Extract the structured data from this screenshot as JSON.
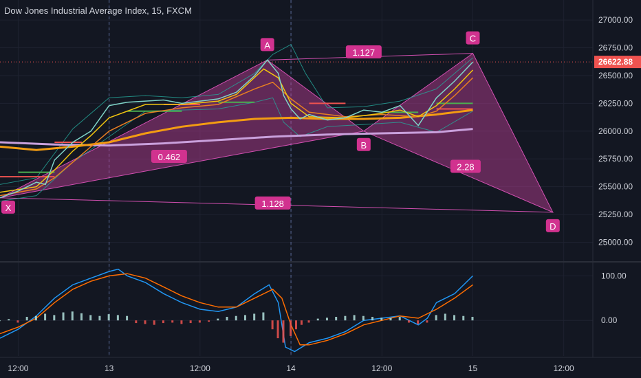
{
  "header": {
    "title": "Dow Jones Industrial Average Index, 15, FXCM"
  },
  "price_tag": "26622.88",
  "colors": {
    "background": "#131722",
    "grid": "#1e2230",
    "text": "#d1d4dc",
    "pattern_fill": "#c2409a",
    "pattern_line": "#d14fb0",
    "label_bg": "#d1328f",
    "up": "#26a69a",
    "down": "#ef5350",
    "ema_orange": "#f39c12",
    "sma_lilac": "#c9a0dc",
    "macd": "#2196f3",
    "signal": "#ff6d00"
  },
  "chart_data": [
    {
      "type": "candlestick",
      "title": "Dow Jones Industrial Average Index, 15, FXCM",
      "x_tick_labels": [
        "12:00",
        "13",
        "12:00",
        "14",
        "12:00",
        "15",
        "12:00"
      ],
      "x_ticks": [
        1,
        6,
        11,
        16,
        21,
        26,
        31
      ],
      "x_range": [
        0,
        32.6
      ],
      "y_ticks": [
        25000,
        25250,
        25500,
        25750,
        26000,
        26250,
        26500,
        26750,
        27000
      ],
      "y_tick_labels": [
        "25000.00",
        "25250.00",
        "25500.00",
        "25750.00",
        "26000.00",
        "26250.00",
        "26500.00",
        "26750.00",
        "27000.00"
      ],
      "ylim": [
        24830,
        27180
      ],
      "last_price": 26622.88,
      "vertical_markers": [
        6,
        16
      ],
      "price_path": [
        [
          0,
          25400
        ],
        [
          1,
          25460
        ],
        [
          2,
          25540
        ],
        [
          2.5,
          25520
        ],
        [
          3,
          25740
        ],
        [
          4,
          25900
        ],
        [
          5,
          26000
        ],
        [
          6,
          26230
        ],
        [
          7,
          26260
        ],
        [
          8,
          26270
        ],
        [
          9,
          26280
        ],
        [
          10,
          26250
        ],
        [
          11,
          26270
        ],
        [
          12,
          26290
        ],
        [
          13,
          26350
        ],
        [
          14,
          26500
        ],
        [
          14.7,
          26640
        ],
        [
          15.3,
          26520
        ],
        [
          15.6,
          26320
        ],
        [
          16,
          26200
        ],
        [
          16.5,
          26110
        ],
        [
          17,
          26150
        ],
        [
          18,
          26100
        ],
        [
          19,
          26120
        ],
        [
          20,
          26190
        ],
        [
          21,
          26170
        ],
        [
          22,
          26230
        ],
        [
          23,
          26050
        ],
        [
          24,
          26300
        ],
        [
          25,
          26450
        ],
        [
          26,
          26622
        ]
      ],
      "ema_fast": [
        [
          0,
          25450
        ],
        [
          2,
          25500
        ],
        [
          3,
          25650
        ],
        [
          4,
          25820
        ],
        [
          5,
          25960
        ],
        [
          6,
          26120
        ],
        [
          8,
          26240
        ],
        [
          10,
          26240
        ],
        [
          12,
          26270
        ],
        [
          13,
          26330
        ],
        [
          14.5,
          26560
        ],
        [
          15.3,
          26480
        ],
        [
          16,
          26250
        ],
        [
          17,
          26130
        ],
        [
          19,
          26120
        ],
        [
          21,
          26160
        ],
        [
          22,
          26190
        ],
        [
          23,
          26130
        ],
        [
          24,
          26230
        ],
        [
          25,
          26380
        ],
        [
          26,
          26550
        ]
      ],
      "ema_orange": [
        [
          0,
          25420
        ],
        [
          2,
          25480
        ],
        [
          3,
          25580
        ],
        [
          4,
          25720
        ],
        [
          5,
          25860
        ],
        [
          6,
          26000
        ],
        [
          8,
          26160
        ],
        [
          10,
          26210
        ],
        [
          12,
          26240
        ],
        [
          14,
          26380
        ],
        [
          15,
          26440
        ],
        [
          16,
          26290
        ],
        [
          17,
          26170
        ],
        [
          19,
          26130
        ],
        [
          21,
          26150
        ],
        [
          23,
          26130
        ],
        [
          24,
          26180
        ],
        [
          25,
          26320
        ],
        [
          26,
          26480
        ]
      ],
      "ema_slow": [
        [
          0,
          25860
        ],
        [
          2,
          25830
        ],
        [
          4,
          25860
        ],
        [
          6,
          25900
        ],
        [
          8,
          25980
        ],
        [
          10,
          26040
        ],
        [
          12,
          26080
        ],
        [
          14,
          26110
        ],
        [
          16,
          26120
        ],
        [
          18,
          26110
        ],
        [
          20,
          26110
        ],
        [
          22,
          26120
        ],
        [
          24,
          26150
        ],
        [
          26,
          26190
        ]
      ],
      "sma_lilac": [
        [
          0,
          25900
        ],
        [
          3,
          25880
        ],
        [
          6,
          25870
        ],
        [
          9,
          25890
        ],
        [
          12,
          25920
        ],
        [
          15,
          25950
        ],
        [
          18,
          25970
        ],
        [
          21,
          25980
        ],
        [
          24,
          25990
        ],
        [
          26,
          26020
        ]
      ],
      "bands": [
        {
          "name": "upper",
          "values": [
            [
              0,
              25520
            ],
            [
              2,
              25580
            ],
            [
              4,
              26020
            ],
            [
              6,
              26300
            ],
            [
              8,
              26320
            ],
            [
              10,
              26300
            ],
            [
              12,
              26330
            ],
            [
              14,
              26520
            ],
            [
              15,
              26690
            ],
            [
              16,
              26780
            ],
            [
              16.8,
              26520
            ],
            [
              18,
              26210
            ],
            [
              20,
              26220
            ],
            [
              22,
              26270
            ],
            [
              24,
              26380
            ],
            [
              26,
              26660
            ]
          ]
        },
        {
          "name": "lower",
          "values": [
            [
              0,
              25370
            ],
            [
              2,
              25420
            ],
            [
              4,
              25720
            ],
            [
              6,
              25950
            ],
            [
              8,
              26180
            ],
            [
              10,
              26190
            ],
            [
              12,
              26200
            ],
            [
              14,
              26260
            ],
            [
              15,
              26300
            ],
            [
              15.6,
              26080
            ],
            [
              16.5,
              25950
            ],
            [
              18,
              26040
            ],
            [
              20,
              26060
            ],
            [
              22,
              26080
            ],
            [
              24,
              25990
            ],
            [
              26,
              26180
            ]
          ]
        }
      ],
      "level_lines": [
        {
          "x": [
            0,
            3
          ],
          "y": 25590,
          "color": "down"
        },
        {
          "x": [
            9,
            11
          ],
          "y": 26240,
          "color": "down"
        },
        {
          "x": [
            3,
            4.5
          ],
          "y": 25900,
          "color": "down"
        },
        {
          "x": [
            17,
            19
          ],
          "y": 26250,
          "color": "down"
        },
        {
          "x": [
            24,
            26
          ],
          "y": 26200,
          "color": "down"
        },
        {
          "x": [
            1,
            3
          ],
          "y": 25630,
          "color": "up"
        },
        {
          "x": [
            7,
            10
          ],
          "y": 26180,
          "color": "up"
        },
        {
          "x": [
            12,
            14
          ],
          "y": 26260,
          "color": "up"
        },
        {
          "x": [
            21,
            23
          ],
          "y": 26170,
          "color": "up"
        },
        {
          "x": [
            24,
            26
          ],
          "y": 26250,
          "color": "up"
        }
      ],
      "harmonic_pattern": {
        "points": [
          {
            "label": "X",
            "x": 0,
            "y": 25400
          },
          {
            "label": "A",
            "x": 14.7,
            "y": 26640
          },
          {
            "label": "B",
            "x": 20,
            "y": 26000
          },
          {
            "label": "C",
            "x": 26,
            "y": 26700
          },
          {
            "label": "D",
            "x": 30.4,
            "y": 25270
          }
        ],
        "ratios": [
          {
            "label": "0.462",
            "x": 9.3,
            "y": 25770
          },
          {
            "label": "1.127",
            "x": 20,
            "y": 26710
          },
          {
            "label": "2.28",
            "x": 25.6,
            "y": 25680
          },
          {
            "label": "1.128",
            "x": 15,
            "y": 25350
          }
        ]
      }
    },
    {
      "type": "bar+line",
      "title": "",
      "y_ticks": [
        0,
        100
      ],
      "y_tick_labels": [
        "0.00",
        "100.00"
      ],
      "ylim": [
        -80,
        130
      ],
      "series": [
        {
          "kind": "line",
          "color": "macd",
          "values": [
            [
              0,
              -40
            ],
            [
              1,
              -20
            ],
            [
              2,
              10
            ],
            [
              3,
              50
            ],
            [
              4,
              80
            ],
            [
              5,
              95
            ],
            [
              6,
              110
            ],
            [
              6.5,
              115
            ],
            [
              7,
              100
            ],
            [
              8,
              85
            ],
            [
              9,
              60
            ],
            [
              10,
              40
            ],
            [
              11,
              25
            ],
            [
              12,
              20
            ],
            [
              13,
              30
            ],
            [
              14,
              60
            ],
            [
              14.8,
              80
            ],
            [
              15.3,
              40
            ],
            [
              15.7,
              -60
            ],
            [
              16.2,
              -70
            ],
            [
              17,
              -50
            ],
            [
              18,
              -40
            ],
            [
              19,
              -25
            ],
            [
              20,
              0
            ],
            [
              21,
              5
            ],
            [
              22,
              10
            ],
            [
              23,
              -10
            ],
            [
              23.5,
              5
            ],
            [
              24,
              40
            ],
            [
              25,
              60
            ],
            [
              26,
              100
            ]
          ]
        },
        {
          "kind": "line",
          "color": "signal",
          "values": [
            [
              0,
              -30
            ],
            [
              1,
              -15
            ],
            [
              2,
              5
            ],
            [
              3,
              40
            ],
            [
              4,
              70
            ],
            [
              5,
              88
            ],
            [
              6,
              100
            ],
            [
              7,
              105
            ],
            [
              8,
              95
            ],
            [
              9,
              75
            ],
            [
              10,
              55
            ],
            [
              11,
              40
            ],
            [
              12,
              30
            ],
            [
              13,
              30
            ],
            [
              14,
              50
            ],
            [
              15,
              70
            ],
            [
              15.5,
              50
            ],
            [
              16,
              -10
            ],
            [
              16.5,
              -55
            ],
            [
              17,
              -55
            ],
            [
              18,
              -45
            ],
            [
              19,
              -30
            ],
            [
              20,
              -10
            ],
            [
              21,
              0
            ],
            [
              22,
              10
            ],
            [
              23,
              5
            ],
            [
              24,
              25
            ],
            [
              25,
              50
            ],
            [
              26,
              80
            ]
          ]
        },
        {
          "kind": "histogram",
          "values": [
            [
              0,
              0
            ],
            [
              0.5,
              3
            ],
            [
              1,
              -5
            ],
            [
              1.5,
              8
            ],
            [
              2,
              10
            ],
            [
              2.5,
              15
            ],
            [
              3,
              12
            ],
            [
              3.5,
              18
            ],
            [
              4,
              20
            ],
            [
              4.5,
              16
            ],
            [
              5,
              12
            ],
            [
              5.5,
              10
            ],
            [
              6,
              14
            ],
            [
              6.5,
              12
            ],
            [
              7,
              10
            ],
            [
              7.5,
              -6
            ],
            [
              8,
              -8
            ],
            [
              8.5,
              -10
            ],
            [
              9,
              -6
            ],
            [
              9.5,
              -5
            ],
            [
              10,
              -8
            ],
            [
              10.5,
              -6
            ],
            [
              11,
              -5
            ],
            [
              11.5,
              -3
            ],
            [
              12,
              4
            ],
            [
              12.5,
              8
            ],
            [
              13,
              10
            ],
            [
              13.5,
              12
            ],
            [
              14,
              15
            ],
            [
              14.5,
              18
            ],
            [
              15,
              -20
            ],
            [
              15.3,
              -40
            ],
            [
              15.6,
              -50
            ],
            [
              16,
              -35
            ],
            [
              16.3,
              -20
            ],
            [
              16.6,
              -10
            ],
            [
              17,
              -5
            ],
            [
              17.5,
              4
            ],
            [
              18,
              6
            ],
            [
              18.5,
              8
            ],
            [
              19,
              10
            ],
            [
              19.5,
              12
            ],
            [
              20,
              10
            ],
            [
              20.5,
              8
            ],
            [
              21,
              6
            ],
            [
              21.5,
              5
            ],
            [
              22,
              8
            ],
            [
              22.5,
              -5
            ],
            [
              23,
              -8
            ],
            [
              23.5,
              -5
            ],
            [
              24,
              12
            ],
            [
              24.5,
              15
            ],
            [
              25,
              12
            ],
            [
              25.5,
              10
            ],
            [
              26,
              8
            ]
          ]
        }
      ]
    }
  ]
}
